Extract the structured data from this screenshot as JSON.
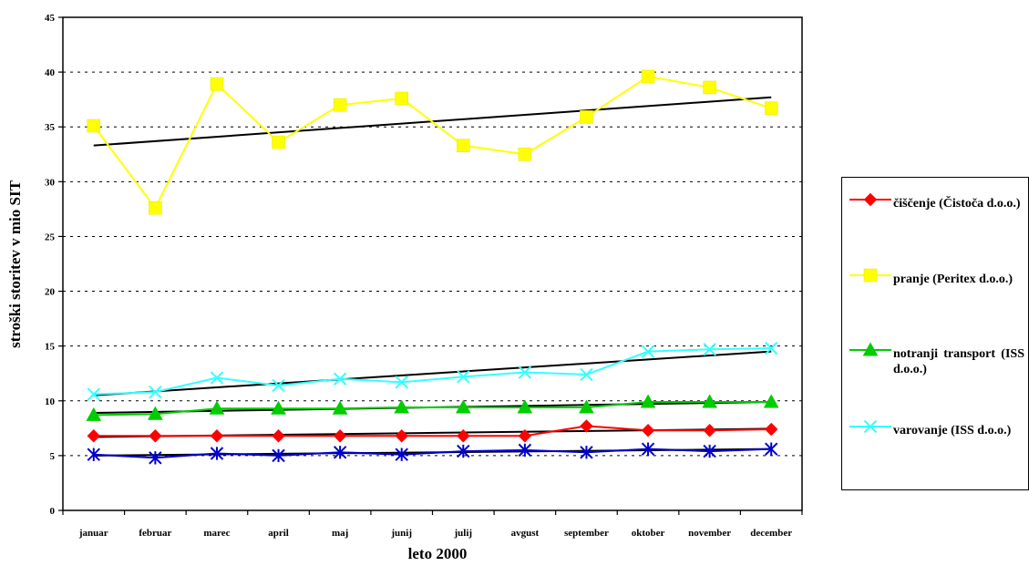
{
  "chart_data": {
    "type": "line",
    "xlabel": "leto 2000",
    "ylabel": "stroški storitev v mio SIT",
    "ylim": [
      0,
      45
    ],
    "yticks": [
      0,
      5,
      10,
      15,
      20,
      25,
      30,
      35,
      40,
      45
    ],
    "grid": "horizontal dashed",
    "legend_position": "right",
    "categories": [
      "januar",
      "februar",
      "marec",
      "april",
      "maj",
      "junij",
      "julij",
      "avgust",
      "september",
      "oktober",
      "november",
      "december"
    ],
    "series": [
      {
        "name": "čiščenje (Čistoča d.o.o.)",
        "color": "#ff0000",
        "marker": "diamond",
        "values": [
          6.8,
          6.8,
          6.8,
          6.8,
          6.8,
          6.8,
          6.8,
          6.8,
          7.7,
          7.3,
          7.3,
          7.4
        ],
        "trend": [
          6.7,
          7.45
        ]
      },
      {
        "name": "pranje (Peritex d.o.o.)",
        "color": "#ffff00",
        "marker": "square",
        "values": [
          35.1,
          27.6,
          38.9,
          33.6,
          37.0,
          37.6,
          33.3,
          32.5,
          35.9,
          39.6,
          38.6,
          36.7
        ],
        "trend": [
          33.3,
          37.7
        ]
      },
      {
        "name": "notranji transport (ISS d.o.o.)",
        "color": "#00cc00",
        "marker": "triangle",
        "values": [
          8.7,
          8.8,
          9.3,
          9.3,
          9.3,
          9.4,
          9.4,
          9.4,
          9.4,
          9.9,
          9.9,
          9.9
        ],
        "trend": [
          8.9,
          9.9
        ]
      },
      {
        "name": "varovanje (ISS d.o.o.)",
        "color": "#33ffff",
        "marker": "x",
        "values": [
          10.6,
          10.8,
          12.1,
          11.4,
          12.0,
          11.7,
          12.2,
          12.6,
          12.4,
          14.5,
          14.7,
          14.8
        ],
        "trend": [
          10.5,
          14.5
        ]
      },
      {
        "color": "#0000cc",
        "marker": "star",
        "values": [
          5.1,
          4.8,
          5.2,
          5.0,
          5.3,
          5.1,
          5.4,
          5.5,
          5.3,
          5.6,
          5.4,
          5.6
        ],
        "trend": [
          5.0,
          5.6
        ]
      }
    ]
  }
}
